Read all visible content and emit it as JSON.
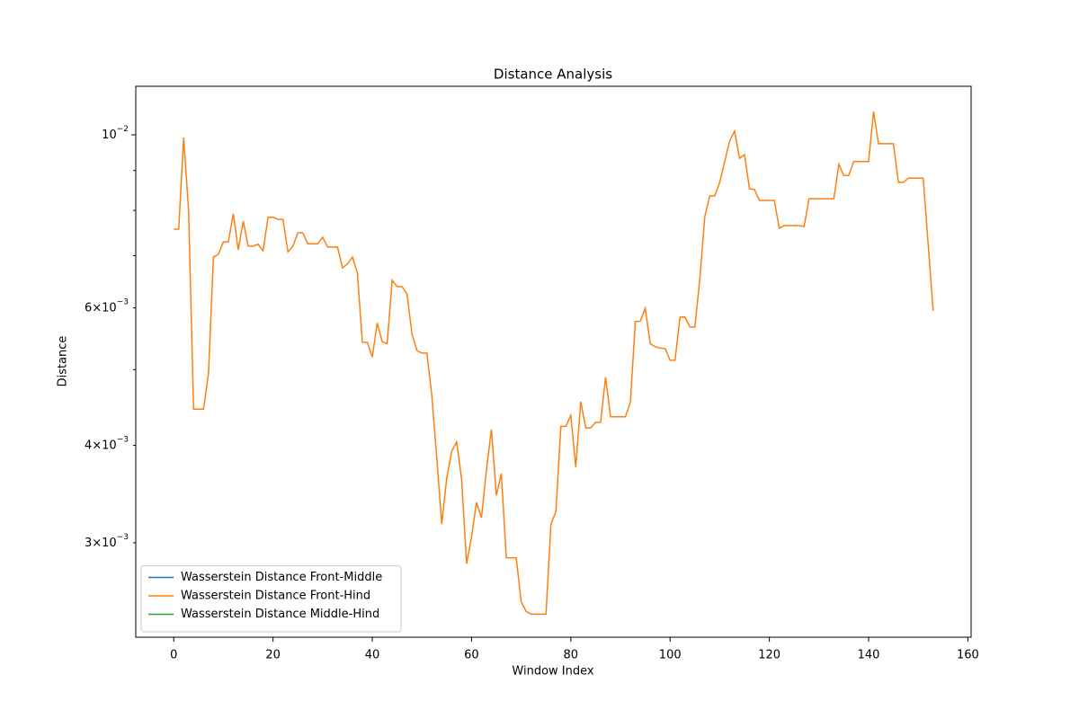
{
  "chart_data": {
    "type": "line",
    "title": "Distance Analysis",
    "x_label": "Window Index",
    "y_label": "Distance",
    "y_scale": "log",
    "legend": "lower left",
    "grid": false,
    "xlim": [
      -7.65,
      160.65
    ],
    "xticks": [
      0,
      20,
      40,
      60,
      80,
      100,
      120,
      140,
      160
    ],
    "ylim": [
      0.00227,
      0.01154
    ],
    "yticks": [
      {
        "value": 0.01,
        "label": "10",
        "exponent": "−2"
      },
      {
        "value": 0.006,
        "label": "6×10",
        "exponent": "−3"
      },
      {
        "value": 0.004,
        "label": "4×10",
        "exponent": "−3"
      },
      {
        "value": 0.003,
        "label": "3×10",
        "exponent": "−3"
      }
    ],
    "yminorticks": [
      0.005,
      0.007,
      0.008,
      0.009
    ],
    "x": [
      0,
      1,
      2,
      3,
      4,
      5,
      6,
      7,
      8,
      9,
      10,
      11,
      12,
      13,
      14,
      15,
      16,
      17,
      18,
      19,
      20,
      21,
      22,
      23,
      24,
      25,
      26,
      27,
      28,
      29,
      30,
      31,
      32,
      33,
      34,
      35,
      36,
      37,
      38,
      39,
      40,
      41,
      42,
      43,
      44,
      45,
      46,
      47,
      48,
      49,
      50,
      51,
      52,
      53,
      54,
      55,
      56,
      57,
      58,
      59,
      60,
      61,
      62,
      63,
      64,
      65,
      66,
      67,
      68,
      69,
      70,
      71,
      72,
      73,
      74,
      75,
      76,
      77,
      78,
      79,
      80,
      81,
      82,
      83,
      84,
      85,
      86,
      87,
      88,
      89,
      90,
      91,
      92,
      93,
      94,
      95,
      96,
      97,
      98,
      99,
      100,
      101,
      102,
      103,
      104,
      105,
      106,
      107,
      108,
      109,
      110,
      111,
      112,
      113,
      114,
      115,
      116,
      117,
      118,
      119,
      120,
      121,
      122,
      123,
      124,
      125,
      126,
      127,
      128,
      129,
      130,
      131,
      132,
      133,
      134,
      135,
      136,
      137,
      138,
      139,
      140,
      141,
      142,
      143,
      144,
      145,
      146,
      147,
      148,
      149,
      150,
      151,
      152,
      153
    ],
    "series": [
      {
        "name": "Wasserstein Distance Front-Middle",
        "color": "#1f77b4",
        "values": [
          null,
          null,
          null,
          null,
          null,
          null,
          null,
          null,
          null,
          null,
          null,
          null,
          null,
          null,
          null,
          null,
          null,
          null,
          null,
          null,
          null,
          null,
          null,
          null,
          null,
          null,
          null,
          null,
          null,
          null,
          null,
          null,
          null,
          null,
          null,
          null,
          null,
          null,
          null,
          null,
          null,
          null,
          null,
          null,
          null,
          null,
          null,
          null,
          null,
          null,
          null,
          null,
          null,
          null,
          null,
          null,
          null,
          null,
          null,
          null,
          null,
          null,
          null,
          null,
          null,
          null,
          null,
          null,
          null,
          null,
          null,
          null,
          null,
          null,
          null,
          null,
          null,
          null,
          null,
          null,
          null,
          null,
          null,
          null,
          null,
          null,
          null,
          null,
          null,
          null,
          null,
          null,
          null,
          null,
          null,
          null,
          null,
          null,
          null,
          null,
          null,
          null,
          null,
          null,
          null,
          null,
          null,
          null,
          null,
          null,
          null,
          null,
          null,
          null,
          null,
          null,
          null,
          null,
          null,
          null,
          null,
          null,
          null,
          null,
          null,
          null,
          null,
          null,
          null,
          null,
          null,
          null,
          null,
          null,
          null,
          null,
          null,
          null,
          null,
          null,
          null,
          null,
          null,
          null,
          null,
          null,
          null,
          null,
          null,
          null,
          null,
          null,
          null,
          null
        ]
      },
      {
        "name": "Wasserstein Distance Front-Hind",
        "color": "#ff7f0e",
        "values": [
          0.00757,
          0.00757,
          0.00992,
          0.00798,
          0.00445,
          0.00445,
          0.00445,
          0.00495,
          0.00697,
          0.00703,
          0.00729,
          0.00729,
          0.00792,
          0.00712,
          0.00775,
          0.0072,
          0.0072,
          0.00724,
          0.0071,
          0.00784,
          0.00784,
          0.00779,
          0.00779,
          0.00708,
          0.0072,
          0.00749,
          0.00749,
          0.00725,
          0.00725,
          0.00725,
          0.00739,
          0.00718,
          0.00718,
          0.00718,
          0.00675,
          0.00683,
          0.00697,
          0.00665,
          0.00542,
          0.00542,
          0.00519,
          0.00574,
          0.00543,
          0.0054,
          0.00651,
          0.00639,
          0.00639,
          0.00625,
          0.00556,
          0.00529,
          0.00525,
          0.00525,
          0.00463,
          0.00385,
          0.00317,
          0.00363,
          0.00393,
          0.00404,
          0.00362,
          0.00282,
          0.00305,
          0.00338,
          0.00323,
          0.00372,
          0.00419,
          0.00345,
          0.00368,
          0.00287,
          0.00287,
          0.00287,
          0.00252,
          0.00245,
          0.00243,
          0.00243,
          0.00243,
          0.00243,
          0.00317,
          0.00329,
          0.00423,
          0.00423,
          0.00437,
          0.00375,
          0.00455,
          0.00421,
          0.00421,
          0.00428,
          0.00428,
          0.00489,
          0.00435,
          0.00435,
          0.00435,
          0.00435,
          0.00454,
          0.00576,
          0.00577,
          0.00599,
          0.0054,
          0.00535,
          0.00533,
          0.00532,
          0.00514,
          0.00514,
          0.00584,
          0.00584,
          0.00567,
          0.00567,
          0.00654,
          0.00786,
          0.00835,
          0.00835,
          0.00869,
          0.00924,
          0.00982,
          0.01011,
          0.00933,
          0.00943,
          0.00853,
          0.00851,
          0.00824,
          0.00824,
          0.00824,
          0.00824,
          0.00759,
          0.00765,
          0.00765,
          0.00765,
          0.00765,
          0.00763,
          0.00828,
          0.00828,
          0.00828,
          0.00828,
          0.00828,
          0.00828,
          0.00916,
          0.00887,
          0.00887,
          0.00924,
          0.00924,
          0.00924,
          0.00924,
          0.01071,
          0.00974,
          0.00974,
          0.00974,
          0.00974,
          0.00869,
          0.00869,
          0.0088,
          0.0088,
          0.0088,
          0.0088,
          0.00724,
          0.00595
        ]
      },
      {
        "name": "Wasserstein Distance Middle-Hind",
        "color": "#2ca02c",
        "values": [
          null,
          null,
          null,
          null,
          null,
          null,
          null,
          null,
          null,
          null,
          null,
          null,
          null,
          null,
          null,
          null,
          null,
          null,
          null,
          null,
          null,
          null,
          null,
          null,
          null,
          null,
          null,
          null,
          null,
          null,
          null,
          null,
          null,
          null,
          null,
          null,
          null,
          null,
          null,
          null,
          null,
          null,
          null,
          null,
          null,
          null,
          null,
          null,
          null,
          null,
          null,
          null,
          null,
          null,
          null,
          null,
          null,
          null,
          null,
          null,
          null,
          null,
          null,
          null,
          null,
          null,
          null,
          null,
          null,
          null,
          null,
          null,
          null,
          null,
          null,
          null,
          null,
          null,
          null,
          null,
          null,
          null,
          null,
          null,
          null,
          null,
          null,
          null,
          null,
          null,
          null,
          null,
          null,
          null,
          null,
          null,
          null,
          null,
          null,
          null,
          null,
          null,
          null,
          null,
          null,
          null,
          null,
          null,
          null,
          null,
          null,
          null,
          null,
          null,
          null,
          null,
          null,
          null,
          null,
          null,
          null,
          null,
          null,
          null,
          null,
          null,
          null,
          null,
          null,
          null,
          null,
          null,
          null,
          null,
          null,
          null,
          null,
          null,
          null,
          null,
          null,
          null,
          null,
          null,
          null,
          null,
          null,
          null,
          null,
          null,
          null,
          null,
          null,
          null
        ]
      }
    ]
  }
}
